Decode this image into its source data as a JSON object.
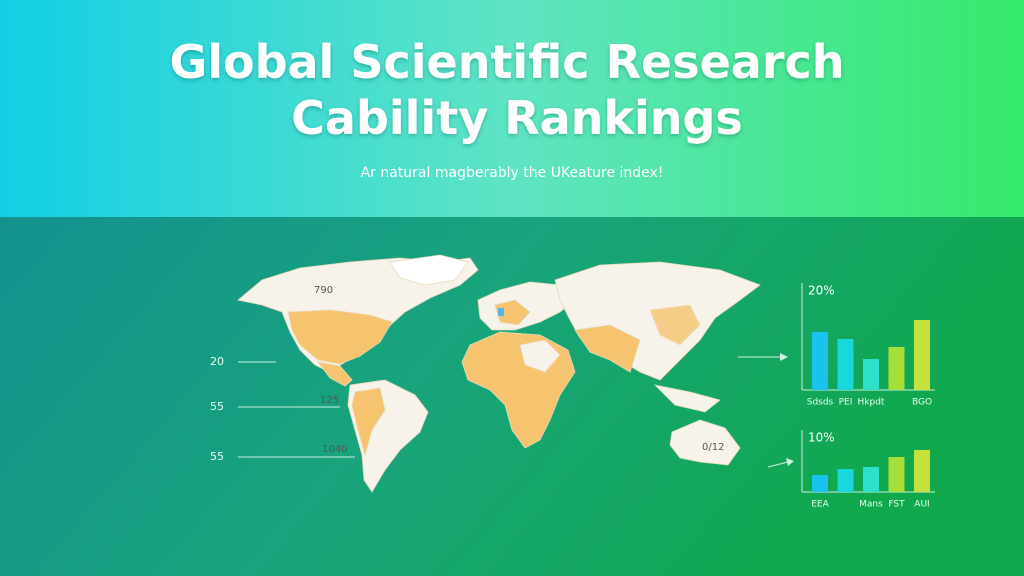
{
  "header": {
    "title_lines": [
      "Global Scientific Research",
      "Cability Rankings"
    ],
    "subtitle": "Ar natural magberably the UKeature index!"
  },
  "side_labels": [
    "20",
    "55",
    "55"
  ],
  "map_labels": [
    "790",
    "125",
    "1040",
    "0/12"
  ],
  "chart_data": [
    {
      "type": "bar",
      "title": "20%",
      "categories": [
        "Sdsds",
        "PEI",
        "Hkpdt",
        null,
        "BGO"
      ],
      "values": [
        58,
        51,
        31,
        43,
        70
      ],
      "colors": [
        "#19c3ee",
        "#1ad6dd",
        "#2fe0c8",
        "#a6de3a",
        "#c6e23a"
      ]
    },
    {
      "type": "bar",
      "title": "10%",
      "categories": [
        "EEA",
        null,
        "Mans",
        "FST",
        "AUI"
      ],
      "values": [
        17,
        23,
        25,
        35,
        42
      ],
      "colors": [
        "#19c3ee",
        "#1ad6dd",
        "#2fe0c8",
        "#a6de3a",
        "#c6e23a"
      ]
    }
  ]
}
